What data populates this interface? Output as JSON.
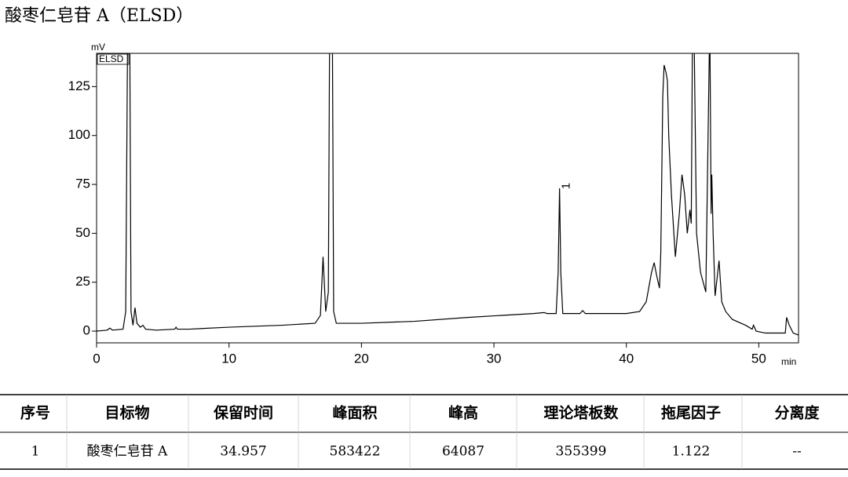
{
  "title": "酸枣仁皂苷 A（ELSD）",
  "chart_data": {
    "type": "line",
    "ylabel": "mV",
    "xlabel": "min",
    "legend": "ELSD",
    "color": "#000000",
    "xlim": [
      0,
      53
    ],
    "ylim": [
      -6,
      142
    ],
    "xticks": [
      0,
      10,
      20,
      30,
      40,
      50
    ],
    "yticks": [
      0,
      25,
      50,
      75,
      100,
      125
    ],
    "peak": {
      "label": "1",
      "x": 34.957,
      "value": 73
    },
    "x": [
      0,
      0.8,
      1,
      1.2,
      2,
      2.2,
      2.35,
      2.5,
      2.6,
      2.75,
      2.9,
      3.05,
      3.3,
      3.5,
      3.7,
      4.5,
      5.9,
      6,
      6.1,
      7,
      10,
      14,
      16.5,
      16.9,
      17.1,
      17.3,
      17.5,
      17.6,
      17.8,
      17.9,
      18.1,
      20,
      24,
      28,
      33,
      33.8,
      34,
      34.7,
      34.85,
      34.957,
      35.05,
      35.2,
      36,
      36.5,
      36.7,
      36.9,
      40,
      41,
      41.5,
      41.9,
      42.1,
      42.3,
      42.5,
      42.6,
      42.75,
      42.85,
      43,
      43.1,
      43.2,
      43.4,
      43.7,
      44,
      44.2,
      44.4,
      44.6,
      44.8,
      44.9,
      45,
      45.1,
      45.3,
      45.6,
      46,
      46.3,
      46.4,
      46.45,
      46.55,
      46.7,
      46.9,
      47,
      47.2,
      47.5,
      48,
      49,
      49.5,
      49.6,
      49.8,
      50.5,
      51.5,
      52,
      52.1,
      52.3,
      52.6,
      53
    ],
    "values": [
      0,
      0.5,
      1.5,
      0.5,
      1,
      10,
      160,
      160,
      10,
      3,
      12,
      4,
      2,
      3,
      1,
      0.5,
      1,
      2,
      1,
      1,
      2,
      3,
      4,
      8,
      38,
      10,
      20,
      160,
      160,
      10,
      4,
      4,
      5,
      7,
      9,
      9.5,
      9,
      9,
      30,
      73,
      30,
      9,
      9,
      9,
      10.5,
      9,
      9,
      10,
      15,
      30,
      35,
      28,
      22,
      40,
      120,
      136,
      132,
      128,
      100,
      70,
      38,
      60,
      80,
      70,
      50,
      62,
      55,
      160,
      160,
      50,
      30,
      20,
      160,
      60,
      80,
      50,
      18,
      30,
      36,
      15,
      10,
      6,
      3,
      1,
      3,
      0,
      -1,
      -1,
      -1,
      7,
      3,
      -1,
      -2
    ]
  },
  "table": {
    "headers": [
      "序号",
      "目标物",
      "保留时间",
      "峰面积",
      "峰高",
      "理论塔板数",
      "拖尾因子",
      "分离度"
    ],
    "rows": [
      [
        "1",
        "酸枣仁皂苷 A",
        "34.957",
        "583422",
        "64087",
        "355399",
        "1.122",
        "--"
      ]
    ]
  }
}
